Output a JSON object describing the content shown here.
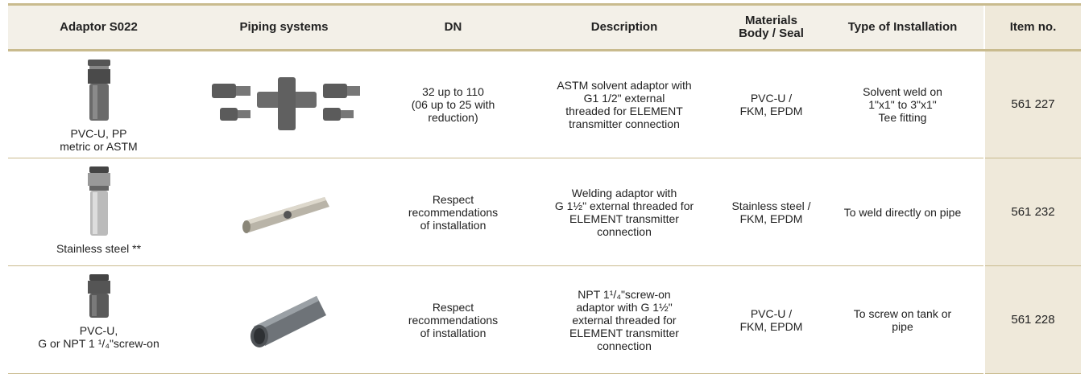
{
  "table": {
    "header": [
      [
        "Adaptor S022"
      ],
      [
        "Piping systems"
      ],
      [
        "DN"
      ],
      [
        "Description"
      ],
      [
        "Materials",
        "Body / Seal"
      ],
      [
        "Type of Installation"
      ],
      [
        "Item no."
      ]
    ],
    "rows": [
      {
        "adaptor": [
          "PVC-U, PP",
          "metric or ASTM"
        ],
        "dn": [
          "32 up to 110",
          "(06 up to 25 with",
          "reduction)"
        ],
        "description": [
          "ASTM solvent adaptor with",
          "G1 1/2\" external",
          "threaded for ELEMENT",
          "transmitter connection"
        ],
        "materials": [
          "PVC-U /",
          "FKM, EPDM"
        ],
        "installation": [
          "Solvent weld on",
          "1\"x1\" to 3\"x1\"",
          "Tee fitting"
        ],
        "item": "561 227"
      },
      {
        "adaptor": [
          "Stainless steel **"
        ],
        "dn": [
          "Respect",
          "recommendations",
          "of installation"
        ],
        "description": [
          "Welding adaptor with",
          "G 1½\" external threaded for",
          "ELEMENT transmitter",
          "connection"
        ],
        "materials": [
          "Stainless steel /",
          "FKM, EPDM"
        ],
        "installation": [
          "To weld directly on pipe"
        ],
        "item": "561 232"
      },
      {
        "adaptor": [
          "PVC-U,",
          "G or NPT 1 ¹/₄\"screw-on"
        ],
        "dn": [
          "Respect",
          "recommendations",
          "of installation"
        ],
        "description": [
          "NPT 1¹/₄\"screw-on",
          "adaptor with G 1½\"",
          "external threaded for",
          "ELEMENT transmitter",
          "connection"
        ],
        "materials": [
          "PVC-U /",
          "FKM, EPDM"
        ],
        "installation": [
          "To screw on tank or",
          "pipe"
        ],
        "item": "561 228"
      }
    ]
  }
}
